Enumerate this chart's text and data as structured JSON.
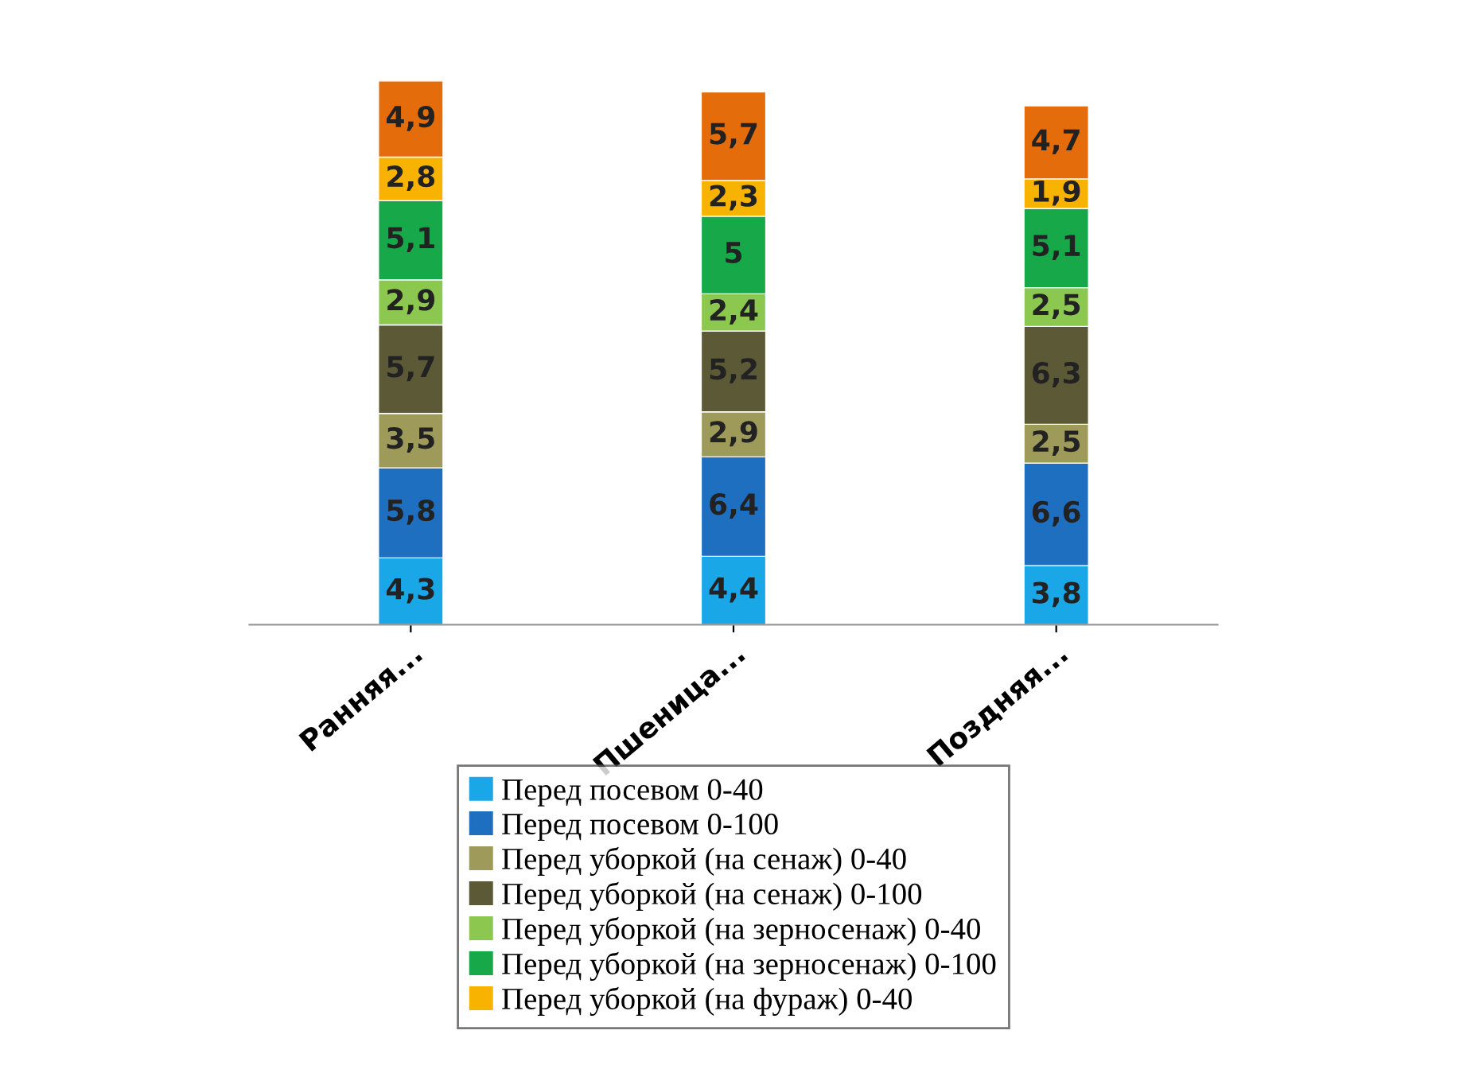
{
  "chart_data": {
    "type": "bar",
    "stacked": true,
    "categories": [
      "Ранняя...",
      "Пшеница...",
      "Поздняя..."
    ],
    "tick_labels": "x",
    "grid": false,
    "legend": "bottom",
    "series": [
      {
        "name": "Перед посевом 0-40",
        "color": "#1aa7e8",
        "values": [
          4.3,
          4.4,
          3.8
        ],
        "value_labels": [
          "4,3",
          "4,4",
          "3,8"
        ]
      },
      {
        "name": "Перед посевом 0-100",
        "color": "#1f6fc0",
        "values": [
          5.8,
          6.4,
          6.6
        ],
        "value_labels": [
          "5,8",
          "6,4",
          "6,6"
        ]
      },
      {
        "name": "Перед уборкой (на сенаж) 0-40",
        "color": "#9e9a5a",
        "values": [
          3.5,
          2.9,
          2.5
        ],
        "value_labels": [
          "3,5",
          "2,9",
          "2,5"
        ]
      },
      {
        "name": "Перед уборкой (на сенаж) 0-100",
        "color": "#5c5a36",
        "values": [
          5.7,
          5.2,
          6.3
        ],
        "value_labels": [
          "5,7",
          "5,2",
          "6,3"
        ]
      },
      {
        "name": "Перед уборкой (на зерносенаж) 0-40",
        "color": "#8cc850",
        "values": [
          2.9,
          2.4,
          2.5
        ],
        "value_labels": [
          "2,9",
          "2,4",
          "2,5"
        ]
      },
      {
        "name": "Перед уборкой (на зерносенаж) 0-100",
        "color": "#17a84a",
        "values": [
          5.1,
          5,
          5.1
        ],
        "value_labels": [
          "5,1",
          "5",
          "5,1"
        ]
      },
      {
        "name": "Перед уборкой (на фураж) 0-40",
        "color": "#f7b300",
        "values": [
          2.8,
          2.3,
          1.9
        ],
        "value_labels": [
          "2,8",
          "2,3",
          "1,9"
        ]
      },
      {
        "color": "#e46c0a",
        "values": [
          4.9,
          5.7,
          4.7
        ],
        "value_labels": [
          "4,9",
          "5,7",
          "4,7"
        ]
      }
    ]
  }
}
